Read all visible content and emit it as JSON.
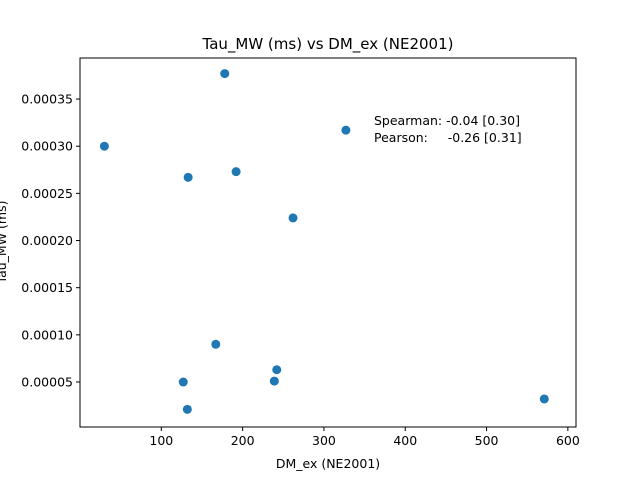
{
  "chart_data": {
    "type": "scatter",
    "title": "Tau_MW (ms) vs DM_ex (NE2001)",
    "xlabel": "DM_ex (NE2001)",
    "ylabel": "Tau_MW (ms)",
    "xlim": [
      0,
      610
    ],
    "ylim": [
      2.3e-06,
      0.0003935
    ],
    "xticks": [
      100,
      200,
      300,
      400,
      500,
      600
    ],
    "xtick_labels": [
      "100",
      "200",
      "300",
      "400",
      "500",
      "600"
    ],
    "yticks": [
      5e-05,
      0.0001,
      0.00015,
      0.0002,
      0.00025,
      0.0003,
      0.00035
    ],
    "ytick_labels": [
      "0.00005",
      "0.00010",
      "0.00015",
      "0.00020",
      "0.00025",
      "0.00030",
      "0.00035"
    ],
    "grid": false,
    "marker_color": "#1f77b4",
    "points": [
      {
        "x": 30,
        "y": 0.0003
      },
      {
        "x": 178,
        "y": 0.000377
      },
      {
        "x": 133,
        "y": 0.000267
      },
      {
        "x": 192,
        "y": 0.000273
      },
      {
        "x": 262,
        "y": 0.000224
      },
      {
        "x": 327,
        "y": 0.000317
      },
      {
        "x": 167,
        "y": 9e-05
      },
      {
        "x": 127,
        "y": 5e-05
      },
      {
        "x": 239,
        "y": 5.1e-05
      },
      {
        "x": 242,
        "y": 6.3e-05
      },
      {
        "x": 132,
        "y": 2.1e-05
      },
      {
        "x": 571,
        "y": 3.2e-05
      }
    ],
    "annotation": {
      "line1": "Spearman: -0.04 [0.30]",
      "line2": "Pearson:     -0.26 [0.31]"
    }
  }
}
